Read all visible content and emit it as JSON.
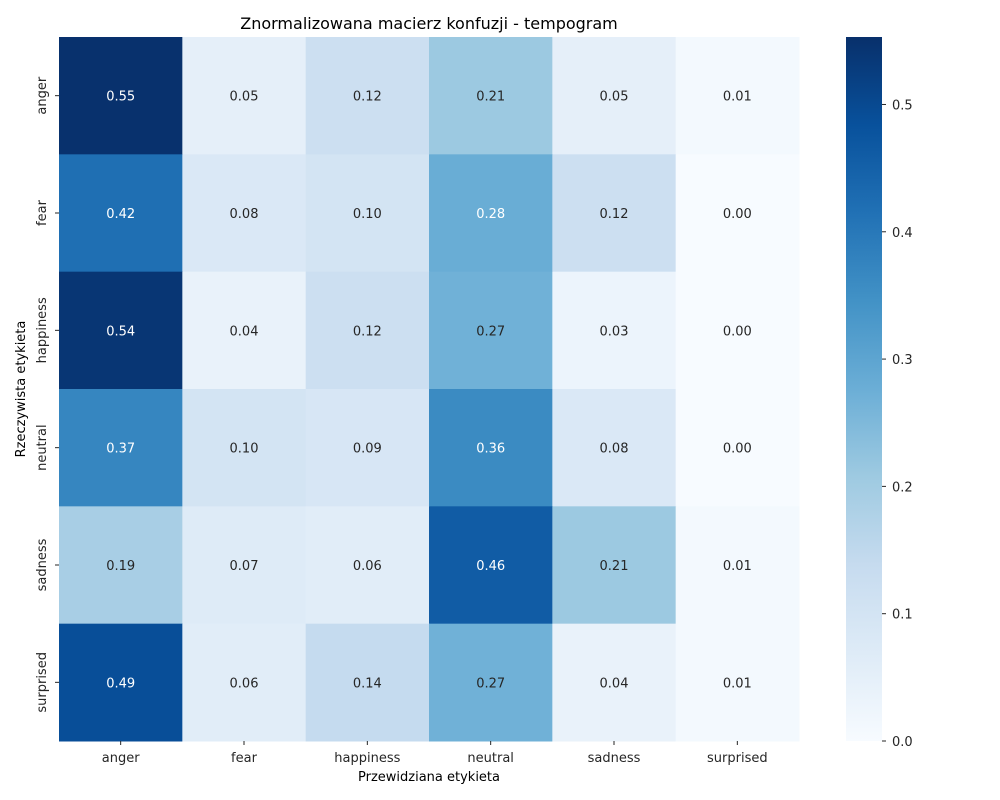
{
  "chart_data": {
    "type": "heatmap",
    "title": "Znormalizowana macierz konfuzji - tempogram",
    "xlabel": "Przewidziana etykieta",
    "ylabel": "Rzeczywista etykieta",
    "x_categories": [
      "anger",
      "fear",
      "happiness",
      "neutral",
      "sadness",
      "surprised"
    ],
    "y_categories": [
      "anger",
      "fear",
      "happiness",
      "neutral",
      "sadness",
      "surprised"
    ],
    "values": [
      [
        0.55,
        0.05,
        0.12,
        0.21,
        0.05,
        0.01
      ],
      [
        0.42,
        0.08,
        0.1,
        0.28,
        0.12,
        0.0
      ],
      [
        0.54,
        0.04,
        0.12,
        0.27,
        0.03,
        0.0
      ],
      [
        0.37,
        0.1,
        0.09,
        0.36,
        0.08,
        0.0
      ],
      [
        0.19,
        0.07,
        0.06,
        0.46,
        0.21,
        0.01
      ],
      [
        0.49,
        0.06,
        0.14,
        0.27,
        0.04,
        0.01
      ]
    ],
    "cell_labels": [
      [
        "0.55",
        "0.05",
        "0.12",
        "0.21",
        "0.05",
        "0.01"
      ],
      [
        "0.42",
        "0.08",
        "0.10",
        "0.28",
        "0.12",
        "0.00"
      ],
      [
        "0.54",
        "0.04",
        "0.12",
        "0.27",
        "0.03",
        "0.00"
      ],
      [
        "0.37",
        "0.10",
        "0.09",
        "0.36",
        "0.08",
        "0.00"
      ],
      [
        "0.19",
        "0.07",
        "0.06",
        "0.46",
        "0.21",
        "0.01"
      ],
      [
        "0.49",
        "0.06",
        "0.14",
        "0.27",
        "0.04",
        "0.01"
      ]
    ],
    "colormap": "Blues",
    "colorbar": {
      "range": [
        0.0,
        0.553
      ],
      "ticks": [
        0.0,
        0.1,
        0.2,
        0.3,
        0.4,
        0.5
      ],
      "tick_labels": [
        "0.0",
        "0.1",
        "0.2",
        "0.3",
        "0.4",
        "0.5"
      ]
    }
  }
}
